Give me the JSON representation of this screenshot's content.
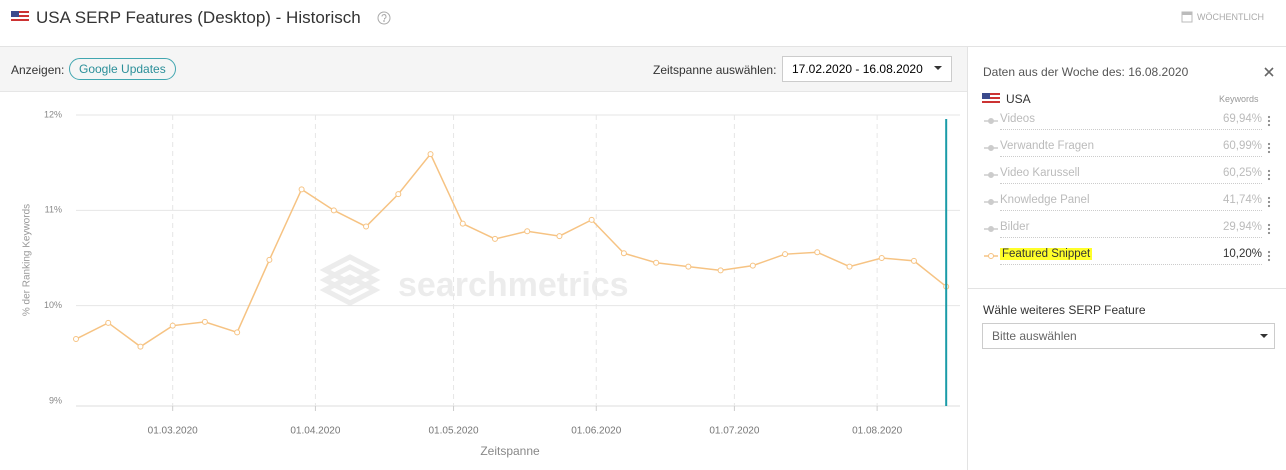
{
  "header": {
    "title": "USA SERP Features (Desktop) - Historisch",
    "interval": "WÖCHENTLICH"
  },
  "toolbar": {
    "show_label": "Anzeigen:",
    "google_updates": "Google Updates",
    "range_label": "Zeitspanne auswählen:",
    "range": "17.02.2020 - 16.08.2020"
  },
  "panel": {
    "heading": "Daten aus der Woche des: 16.08.2020",
    "country": "USA",
    "column": "Keywords",
    "rows": [
      {
        "name": "Videos",
        "value": "69,94%"
      },
      {
        "name": "Verwandte Fragen",
        "value": "60,99%"
      },
      {
        "name": "Video Karussell",
        "value": "60,25%"
      },
      {
        "name": "Knowledge Panel",
        "value": "41,74%"
      },
      {
        "name": "Bilder",
        "value": "29,94%"
      }
    ],
    "selected_value": "10,20%",
    "select_label": "Wähle weiteres SERP Feature",
    "select_placeholder": "Bitte auswählen"
  },
  "chart_data": {
    "type": "line",
    "watermark": "searchmetrics",
    "x_label": "Zeitspanne",
    "y_label": "% der Ranking Keywords",
    "x": [
      "2020-02-09",
      "2020-02-16",
      "2020-02-23",
      "2020-03-01",
      "2020-03-08",
      "2020-03-15",
      "2020-03-22",
      "2020-03-29",
      "2020-04-05",
      "2020-04-12",
      "2020-04-19",
      "2020-04-26",
      "2020-05-03",
      "2020-05-10",
      "2020-05-17",
      "2020-05-24",
      "2020-05-31",
      "2020-06-07",
      "2020-06-14",
      "2020-06-21",
      "2020-06-28",
      "2020-07-05",
      "2020-07-12",
      "2020-07-19",
      "2020-07-26",
      "2020-08-02",
      "2020-08-09",
      "2020-08-16"
    ],
    "series": [
      {
        "name": "Featured Snippet",
        "color": "#f6c383",
        "values": [
          9.65,
          9.82,
          9.57,
          9.79,
          9.83,
          9.72,
          10.48,
          11.22,
          11.0,
          10.83,
          11.17,
          11.59,
          10.86,
          10.7,
          10.78,
          10.73,
          10.9,
          10.55,
          10.45,
          10.41,
          10.37,
          10.42,
          10.54,
          10.56,
          10.41,
          10.5,
          10.47,
          10.2
        ]
      }
    ],
    "xlim": [
      "2020-02-09",
      "2020-08-19"
    ],
    "xticks": [
      {
        "value": "2020-03-01",
        "label": "01.03.2020"
      },
      {
        "value": "2020-04-01",
        "label": "01.04.2020"
      },
      {
        "value": "2020-05-01",
        "label": "01.05.2020"
      },
      {
        "value": "2020-06-01",
        "label": "01.06.2020"
      },
      {
        "value": "2020-07-01",
        "label": "01.07.2020"
      },
      {
        "value": "2020-08-01",
        "label": "01.08.2020"
      }
    ],
    "ylim": [
      9,
      12
    ],
    "yticks": [
      {
        "value": 9,
        "label": "9%"
      },
      {
        "value": 10,
        "label": "10%"
      },
      {
        "value": 11,
        "label": "11%"
      },
      {
        "value": 12,
        "label": "12%"
      }
    ],
    "grid": true,
    "cursor_color": "#1a9ba8"
  }
}
